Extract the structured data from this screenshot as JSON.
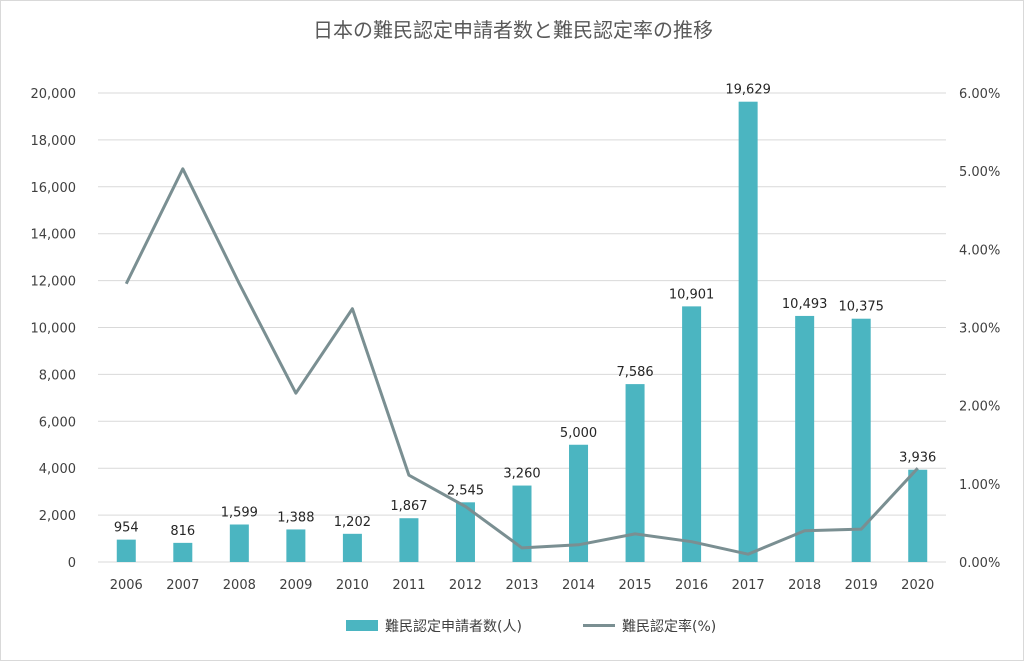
{
  "chart_data": {
    "type": "bar",
    "title": "日本の難民認定申請者数と難民認定率の推移",
    "categories": [
      "2006",
      "2007",
      "2008",
      "2009",
      "2010",
      "2011",
      "2012",
      "2013",
      "2014",
      "2015",
      "2016",
      "2017",
      "2018",
      "2019",
      "2020"
    ],
    "series": [
      {
        "name": "難民認定申請者数(人)",
        "type": "bar",
        "axis": "left",
        "color": "#4BB5C1",
        "values": [
          954,
          816,
          1599,
          1388,
          1202,
          1867,
          2545,
          3260,
          5000,
          7586,
          10901,
          19629,
          10493,
          10375,
          3936
        ],
        "labels": [
          "954",
          "816",
          "1,599",
          "1,388",
          "1,202",
          "1,867",
          "2,545",
          "3,260",
          "5,000",
          "7,586",
          "10,901",
          "19,629",
          "10,493",
          "10,375",
          "3,936"
        ]
      },
      {
        "name": "難民認定率(%)",
        "type": "line",
        "axis": "right",
        "color": "#7A8F92",
        "values": [
          3.56,
          5.03,
          3.56,
          2.16,
          3.24,
          1.11,
          0.71,
          0.18,
          0.22,
          0.36,
          0.26,
          0.1,
          0.4,
          0.42,
          1.2
        ]
      }
    ],
    "ylim": [
      0,
      20000
    ],
    "yticks": [
      "0",
      "2,000",
      "4,000",
      "6,000",
      "8,000",
      "10,000",
      "12,000",
      "14,000",
      "16,000",
      "18,000",
      "20,000"
    ],
    "y2lim": [
      0,
      6
    ],
    "y2ticks": [
      "0.00%",
      "1.00%",
      "2.00%",
      "3.00%",
      "4.00%",
      "5.00%",
      "6.00%"
    ],
    "grid": true,
    "legend": "bottom"
  }
}
